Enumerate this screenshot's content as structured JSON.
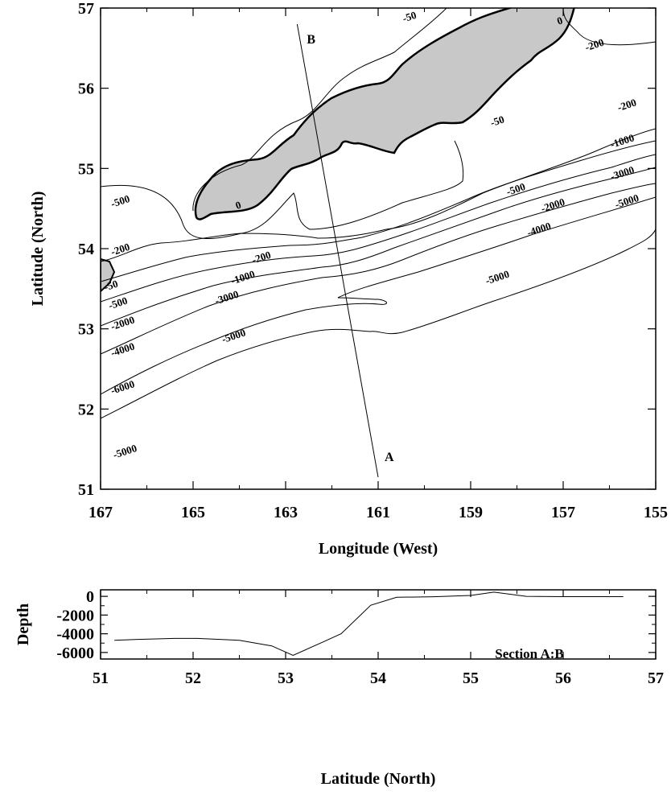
{
  "chart_data": [
    {
      "type": "contour",
      "xlabel": "Longitude (West)",
      "ylabel": "Latitude (North)",
      "xlim": [
        167,
        155
      ],
      "ylim": [
        51,
        57
      ],
      "xticks": [
        167,
        165,
        163,
        161,
        159,
        157,
        155
      ],
      "yticks": [
        51,
        52,
        53,
        54,
        55,
        56,
        57
      ],
      "land_color": "#c8c8c8",
      "section_line": {
        "points": [
          {
            "label": "B",
            "lon": 162.75,
            "lat": 56.8
          },
          {
            "label": "A",
            "lon": 161.0,
            "lat": 51.15
          }
        ]
      },
      "contour_levels": [
        0,
        -50,
        -200,
        -500,
        -1000,
        -2000,
        -3000,
        -4000,
        -5000,
        -6000
      ],
      "contour_labels": [
        {
          "text": "-50",
          "lon": 160.3,
          "lat": 56.85
        },
        {
          "text": "0",
          "lon": 157.05,
          "lat": 56.8
        },
        {
          "text": "-200",
          "lon": 156.3,
          "lat": 56.5
        },
        {
          "text": "-200",
          "lon": 155.6,
          "lat": 55.75
        },
        {
          "text": "-50",
          "lon": 158.4,
          "lat": 55.55
        },
        {
          "text": "-1000",
          "lon": 155.7,
          "lat": 55.3
        },
        {
          "text": "-3000",
          "lon": 155.7,
          "lat": 54.9
        },
        {
          "text": "-500",
          "lon": 158.0,
          "lat": 54.7
        },
        {
          "text": "-2000",
          "lon": 157.2,
          "lat": 54.5
        },
        {
          "text": "-5000",
          "lon": 155.6,
          "lat": 54.55
        },
        {
          "text": "-4000",
          "lon": 157.5,
          "lat": 54.2
        },
        {
          "text": "-500",
          "lon": 166.55,
          "lat": 54.55
        },
        {
          "text": "0",
          "lon": 164.0,
          "lat": 54.5
        },
        {
          "text": "-200",
          "lon": 166.55,
          "lat": 53.95
        },
        {
          "text": "-200",
          "lon": 163.5,
          "lat": 53.85
        },
        {
          "text": "-1000",
          "lon": 163.9,
          "lat": 53.6
        },
        {
          "text": "-3000",
          "lon": 164.25,
          "lat": 53.35
        },
        {
          "text": "-50",
          "lon": 166.75,
          "lat": 53.5
        },
        {
          "text": "-500",
          "lon": 166.6,
          "lat": 53.28
        },
        {
          "text": "-2000",
          "lon": 166.5,
          "lat": 53.03
        },
        {
          "text": "-5000",
          "lon": 164.1,
          "lat": 52.87
        },
        {
          "text": "-4000",
          "lon": 166.5,
          "lat": 52.7
        },
        {
          "text": "-5000",
          "lon": 158.4,
          "lat": 53.6
        },
        {
          "text": "-6000",
          "lon": 166.5,
          "lat": 52.23
        },
        {
          "text": "-5000",
          "lon": 166.45,
          "lat": 51.43
        }
      ]
    },
    {
      "type": "line",
      "xlabel": "Latitude (North)",
      "ylabel": "Depth",
      "xlim": [
        51,
        57
      ],
      "ylim": [
        -6700,
        700
      ],
      "xticks": [
        51,
        52,
        53,
        54,
        55,
        56,
        57
      ],
      "yticks": [
        0,
        -2000,
        -4000,
        -6000
      ],
      "annotation": "Section A:B",
      "series": [
        {
          "x": [
            51.15,
            51.4,
            51.8,
            52.05,
            52.5,
            52.85,
            53.08,
            53.4,
            53.6,
            53.92,
            54.2,
            54.6,
            55.0,
            55.25,
            55.6,
            56.0,
            56.65
          ],
          "y": [
            -4700,
            -4600,
            -4500,
            -4500,
            -4700,
            -5300,
            -6300,
            -4900,
            -4000,
            -950,
            -100,
            -40,
            100,
            450,
            0,
            -30,
            -30
          ]
        }
      ]
    }
  ]
}
